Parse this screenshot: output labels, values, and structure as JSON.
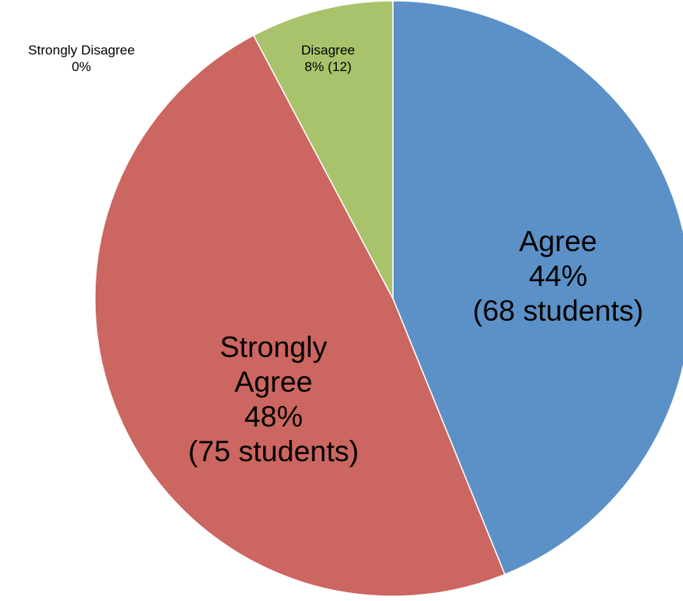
{
  "chart_data": {
    "type": "pie",
    "start_angle_deg": 0,
    "direction": "clockwise",
    "slices": [
      {
        "name": "Agree",
        "percent_label": "44%",
        "count_label": "(68 students)",
        "value": 68,
        "color": "#5b91c7",
        "style": "inside"
      },
      {
        "name": "Strongly Agree",
        "name_lines": [
          "Strongly",
          "Agree"
        ],
        "percent_label": "48%",
        "count_label": "(75 students)",
        "value": 75,
        "color": "#cc6660",
        "style": "inside"
      },
      {
        "name": "Strongly Disagree",
        "percent_label": "0%",
        "count_label": "",
        "value": 0,
        "color": "#7f65a3",
        "style": "outside"
      },
      {
        "name": "Disagree",
        "percent_label": "8%",
        "count_label": "(12)",
        "value": 12,
        "color": "#a8c36b",
        "style": "outside"
      }
    ]
  }
}
